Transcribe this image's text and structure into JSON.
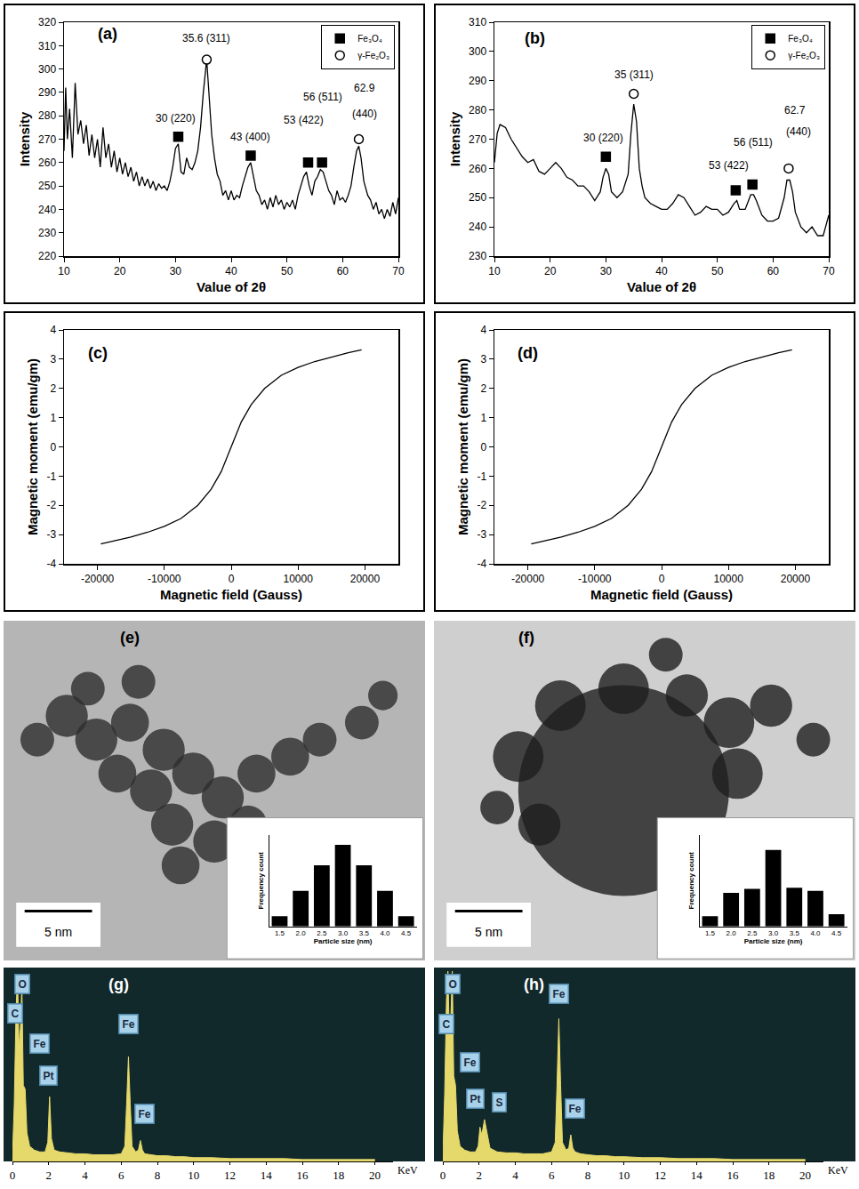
{
  "chart_data": [
    {
      "type": "line",
      "label": "(a)",
      "xlabel": "Value of 2θ",
      "ylabel": "Intensity",
      "xlim": [
        10,
        70
      ],
      "xticks": [
        10,
        20,
        30,
        40,
        50,
        60,
        70
      ],
      "ylim": [
        220,
        320
      ],
      "yticks": [
        220,
        230,
        240,
        250,
        260,
        270,
        280,
        290,
        300,
        310,
        320
      ],
      "grid": false,
      "legend": "top right",
      "series": [
        {
          "type": "line",
          "color": "#000000",
          "line_style": "solid",
          "x": [
            10,
            10.3,
            10.6,
            11,
            11.5,
            12,
            12.5,
            13,
            13.5,
            14,
            14.5,
            15,
            15.5,
            16,
            16.5,
            17,
            17.5,
            18,
            18.5,
            19,
            19.5,
            20,
            20.5,
            21,
            21.5,
            22,
            22.5,
            23,
            23.5,
            24,
            24.5,
            25,
            25.5,
            26,
            26.5,
            27,
            27.5,
            28,
            28.5,
            29,
            29.5,
            30,
            30.5,
            31,
            31.5,
            32,
            32.5,
            33,
            33.5,
            34,
            34.5,
            35,
            35.6,
            36,
            36.5,
            37,
            37.5,
            38,
            38.5,
            39,
            39.5,
            40,
            40.5,
            41,
            41.5,
            42,
            42.5,
            43,
            43.5,
            44,
            44.5,
            45,
            45.5,
            46,
            46.5,
            47,
            47.5,
            48,
            48.5,
            49,
            49.5,
            50,
            50.5,
            51,
            51.5,
            52,
            52.5,
            53,
            53.5,
            54,
            54.5,
            55,
            55.5,
            56,
            56.5,
            57,
            57.5,
            58,
            58.5,
            59,
            59.5,
            60,
            60.5,
            61,
            61.5,
            62,
            62.5,
            62.9,
            63.3,
            63.8,
            64.5,
            65,
            65.5,
            66,
            66.5,
            67,
            67.5,
            68,
            68.5,
            69,
            69.5,
            70
          ],
          "values": [
            265,
            292,
            270,
            283,
            262,
            294,
            272,
            278,
            268,
            276,
            263,
            272,
            262,
            270,
            258,
            275,
            262,
            268,
            258,
            265,
            256,
            262,
            255,
            260,
            254,
            258,
            252,
            256,
            250,
            254,
            250,
            253,
            249,
            252,
            248,
            251,
            249,
            250,
            248,
            252,
            258,
            266,
            268,
            256,
            255,
            262,
            258,
            257,
            260,
            265,
            275,
            290,
            304,
            290,
            272,
            262,
            255,
            252,
            246,
            248,
            244,
            248,
            244,
            246,
            245,
            250,
            254,
            258,
            260,
            254,
            248,
            246,
            242,
            244,
            240,
            245,
            241,
            246,
            242,
            244,
            240,
            243,
            241,
            244,
            240,
            246,
            250,
            254,
            256,
            250,
            246,
            252,
            254,
            257,
            256,
            252,
            248,
            246,
            242,
            248,
            244,
            245,
            243,
            246,
            250,
            258,
            265,
            267,
            262,
            252,
            246,
            244,
            240,
            243,
            238,
            240,
            236,
            240,
            237,
            243,
            238,
            245
          ]
        },
        {
          "type": "scatter",
          "name": "Fe₃O₄",
          "marker": "square",
          "color": "#000000",
          "x": [
            30.5,
            43.5,
            53.8,
            56.3
          ],
          "values": [
            271,
            263,
            260,
            260
          ]
        },
        {
          "type": "scatter",
          "name": "γ-Fe₂O₃",
          "marker": "open circle",
          "color": "#000000",
          "x": [
            35.6,
            62.9
          ],
          "values": [
            304,
            270
          ]
        }
      ],
      "annotations": [
        {
          "text": "35.6 (311)",
          "x": 35.6,
          "y": 313
        },
        {
          "text": "30 (220)",
          "x": 30,
          "y": 279
        },
        {
          "text": "43 (400)",
          "x": 43.5,
          "y": 271
        },
        {
          "text": "53 (422)",
          "x": 53,
          "y": 278
        },
        {
          "text": "56 (511)",
          "x": 56.5,
          "y": 288
        },
        {
          "text": "62.9",
          "x": 64,
          "y": 292
        },
        {
          "text": "(440)",
          "x": 64,
          "y": 281
        }
      ]
    },
    {
      "type": "line",
      "label": "(b)",
      "xlabel": "Value of 2θ",
      "ylabel": "Intensity",
      "xlim": [
        10,
        70
      ],
      "xticks": [
        10,
        20,
        30,
        40,
        50,
        60,
        70
      ],
      "ylim": [
        230,
        310
      ],
      "yticks": [
        230,
        240,
        250,
        260,
        270,
        280,
        290,
        300,
        310
      ],
      "grid": false,
      "legend": "top right",
      "series": [
        {
          "type": "line",
          "color": "#000000",
          "line_style": "solid",
          "x": [
            10,
            10.5,
            11,
            12,
            13,
            14,
            15,
            16,
            17,
            18,
            19,
            20,
            21,
            22,
            23,
            24,
            25,
            26,
            27,
            28,
            29,
            29.5,
            30,
            30.5,
            31,
            32,
            33,
            34,
            34.5,
            35,
            35.5,
            36,
            36.5,
            37,
            38,
            39,
            40,
            41,
            42,
            43,
            44,
            45,
            46,
            47,
            48,
            49,
            50,
            51,
            52,
            53,
            53.5,
            54,
            55,
            56,
            56.5,
            57,
            58,
            59,
            60,
            61,
            62,
            62.5,
            63,
            63.5,
            64,
            65,
            66,
            67,
            68,
            69,
            70
          ],
          "values": [
            262,
            272,
            275,
            274,
            270,
            267,
            264,
            262,
            263,
            259,
            258,
            260,
            262,
            260,
            257,
            256,
            254,
            254,
            252,
            249,
            252,
            257,
            260,
            258,
            252,
            250,
            252,
            258,
            272,
            282,
            276,
            260,
            254,
            250,
            248,
            247,
            246,
            246,
            248,
            251,
            250,
            247,
            244,
            245,
            247,
            246,
            246,
            244,
            245,
            248,
            249,
            246,
            246,
            251,
            251,
            249,
            244,
            242,
            242,
            243,
            250,
            256,
            256,
            252,
            245,
            240,
            238,
            240,
            237,
            237,
            244
          ]
        },
        {
          "type": "scatter",
          "name": "Fe₃O₄",
          "marker": "square",
          "color": "#000000",
          "x": [
            30,
            53.3,
            56.3
          ],
          "values": [
            264,
            252.5,
            254.5
          ]
        },
        {
          "type": "scatter",
          "name": "γ-Fe₂O₃",
          "marker": "open circle",
          "color": "#000000",
          "x": [
            35,
            62.8
          ],
          "values": [
            285.5,
            260
          ]
        }
      ],
      "annotations": [
        {
          "text": "35 (311)",
          "x": 35,
          "y": 292
        },
        {
          "text": "30 (220)",
          "x": 29.5,
          "y": 270.5
        },
        {
          "text": "53 (422)",
          "x": 52,
          "y": 261
        },
        {
          "text": "56 (511)",
          "x": 56.5,
          "y": 269
        },
        {
          "text": "62.7",
          "x": 64,
          "y": 280
        },
        {
          "text": "(440)",
          "x": 64.5,
          "y": 272.5
        }
      ]
    },
    {
      "type": "line",
      "label": "(c)",
      "xlabel": "Magnetic field (Gauss)",
      "ylabel": "Magnetic moment (emu/gm)",
      "xlim": [
        -25000,
        25000
      ],
      "xticks": [
        -20000,
        -10000,
        0,
        10000,
        20000
      ],
      "ylim": [
        -4,
        4
      ],
      "yticks": [
        -4,
        -3,
        -2,
        -1,
        0,
        1,
        2,
        3,
        4
      ],
      "grid": false,
      "series": [
        {
          "type": "line",
          "color": "#000000",
          "line_style": "solid",
          "x": [
            -19500,
            -17500,
            -15000,
            -12500,
            -10000,
            -7500,
            -5000,
            -3000,
            -1500,
            0,
            1500,
            3000,
            5000,
            7500,
            10000,
            12500,
            15000,
            17500,
            19500
          ],
          "values": [
            -3.32,
            -3.22,
            -3.08,
            -2.92,
            -2.72,
            -2.45,
            -2.0,
            -1.45,
            -0.85,
            0,
            0.85,
            1.45,
            2.0,
            2.45,
            2.72,
            2.92,
            3.08,
            3.22,
            3.32
          ]
        }
      ]
    },
    {
      "type": "line",
      "label": "(d)",
      "xlabel": "Magnetic field (Gauss)",
      "ylabel": "Magnetic moment (emu/gm)",
      "xlim": [
        -25000,
        25000
      ],
      "xticks": [
        -20000,
        -10000,
        0,
        10000,
        20000
      ],
      "ylim": [
        -4,
        4
      ],
      "yticks": [
        -4,
        -3,
        -2,
        -1,
        0,
        1,
        2,
        3,
        4
      ],
      "grid": false,
      "series": [
        {
          "type": "line",
          "color": "#000000",
          "line_style": "solid",
          "x": [
            -19500,
            -17500,
            -15000,
            -12500,
            -10000,
            -7500,
            -5000,
            -3000,
            -1500,
            0,
            1500,
            3000,
            5000,
            7500,
            10000,
            12500,
            15000,
            17500,
            19500
          ],
          "values": [
            -3.32,
            -3.22,
            -3.08,
            -2.92,
            -2.72,
            -2.45,
            -2.0,
            -1.45,
            -0.85,
            0,
            0.85,
            1.45,
            2.0,
            2.45,
            2.72,
            2.92,
            3.08,
            3.22,
            3.32
          ]
        }
      ]
    },
    {
      "type": "bar",
      "label": "(e)",
      "xlabel": "Particle size (nm)",
      "ylabel": "Frequency count",
      "categories": [
        "1.5",
        "2.0",
        "2.5",
        "3.0",
        "3.5",
        "4.0",
        "4.5"
      ],
      "values": [
        1,
        3.5,
        6,
        8,
        6,
        3.5,
        1
      ],
      "color": "#000000",
      "ylim": [
        0,
        9
      ],
      "tick_labels": "x",
      "grid": false,
      "annotations": [
        {
          "text": "5 nm"
        }
      ]
    },
    {
      "type": "bar",
      "label": "(f)",
      "xlabel": "Particle size (nm)",
      "ylabel": "Frequency count",
      "categories": [
        "1.5",
        "2.0",
        "2.5",
        "3.0",
        "3.5",
        "4.0",
        "4.5"
      ],
      "values": [
        1,
        3.3,
        3.7,
        7.5,
        3.8,
        3.5,
        1.2
      ],
      "color": "#000000",
      "ylim": [
        0,
        9
      ],
      "tick_labels": "x",
      "grid": false,
      "annotations": [
        {
          "text": "5 nm"
        }
      ]
    },
    {
      "type": "area",
      "label": "(g)",
      "xlabel": "KeV",
      "color": "#e6d96b",
      "xlim": [
        0,
        21
      ],
      "xticks": [
        0,
        2,
        4,
        6,
        8,
        10,
        12,
        14,
        16,
        18,
        20
      ],
      "ylim": [
        0,
        100
      ],
      "tick_labels": "x",
      "grid": false,
      "x": [
        0,
        0.1,
        0.2,
        0.28,
        0.36,
        0.44,
        0.52,
        0.6,
        0.7,
        0.8,
        0.95,
        1.2,
        1.5,
        1.8,
        1.95,
        2.05,
        2.15,
        2.3,
        2.6,
        3,
        3.5,
        4,
        4.5,
        5,
        5.5,
        6,
        6.2,
        6.3,
        6.4,
        6.5,
        6.6,
        6.8,
        6.95,
        7.06,
        7.17,
        7.3,
        7.6,
        8,
        8.5,
        9,
        9.5,
        10,
        11,
        12,
        13,
        14,
        15,
        16,
        17,
        18,
        19,
        20
      ],
      "values": [
        2,
        30,
        80,
        98,
        60,
        70,
        92,
        40,
        38,
        15,
        8,
        6,
        5,
        5,
        10,
        34,
        12,
        6,
        5,
        4.5,
        4,
        4,
        3.5,
        3.5,
        3.5,
        4,
        8,
        30,
        55,
        30,
        8,
        5,
        6,
        11,
        6,
        4,
        3.5,
        3,
        3,
        2.5,
        2.5,
        2,
        2,
        1.5,
        1.5,
        1.5,
        1.5,
        1,
        1,
        1,
        1,
        1
      ],
      "annotations": [
        {
          "text": "O",
          "x": 0.55,
          "y": 93
        },
        {
          "text": "C",
          "x": 0.15,
          "y": 78
        },
        {
          "text": "Fe",
          "x": 1.5,
          "y": 62
        },
        {
          "text": "Pt",
          "x": 2.0,
          "y": 45
        },
        {
          "text": "Fe",
          "x": 6.4,
          "y": 72
        },
        {
          "text": "Fe",
          "x": 7.3,
          "y": 25
        }
      ]
    },
    {
      "type": "area",
      "label": "(h)",
      "xlabel": "KeV",
      "color": "#e6d96b",
      "xlim": [
        0,
        21
      ],
      "xticks": [
        0,
        2,
        4,
        6,
        8,
        10,
        12,
        14,
        16,
        18,
        20
      ],
      "ylim": [
        0,
        100
      ],
      "tick_labels": "x",
      "grid": false,
      "x": [
        0,
        0.1,
        0.2,
        0.28,
        0.36,
        0.44,
        0.52,
        0.6,
        0.7,
        0.8,
        0.95,
        1.2,
        1.5,
        1.8,
        1.95,
        2.05,
        2.15,
        2.3,
        2.6,
        3,
        3.5,
        4,
        4.5,
        5,
        5.5,
        6,
        6.2,
        6.3,
        6.4,
        6.5,
        6.6,
        6.8,
        6.95,
        7.06,
        7.17,
        7.3,
        7.6,
        8,
        8.5,
        9,
        9.5,
        10,
        11,
        12,
        13,
        14,
        15,
        16,
        17,
        18,
        19,
        20
      ],
      "values": [
        2,
        35,
        85,
        100,
        65,
        75,
        100,
        45,
        40,
        16,
        8,
        6,
        5,
        5,
        8,
        18,
        14,
        22,
        7,
        5,
        4.5,
        4.5,
        4,
        4,
        4,
        5,
        10,
        40,
        75,
        40,
        10,
        6,
        7,
        14,
        7,
        5,
        4,
        3.5,
        3,
        3,
        2.5,
        2.5,
        2,
        2,
        1.5,
        1.5,
        1.5,
        1,
        1,
        1,
        1,
        1
      ],
      "annotations": [
        {
          "text": "O",
          "x": 0.55,
          "y": 93
        },
        {
          "text": "C",
          "x": 0.2,
          "y": 72
        },
        {
          "text": "Fe",
          "x": 1.5,
          "y": 52
        },
        {
          "text": "Pt",
          "x": 1.8,
          "y": 33
        },
        {
          "text": "S",
          "x": 3.1,
          "y": 31
        },
        {
          "text": "Fe",
          "x": 6.4,
          "y": 88
        },
        {
          "text": "Fe",
          "x": 7.3,
          "y": 28
        }
      ]
    }
  ]
}
